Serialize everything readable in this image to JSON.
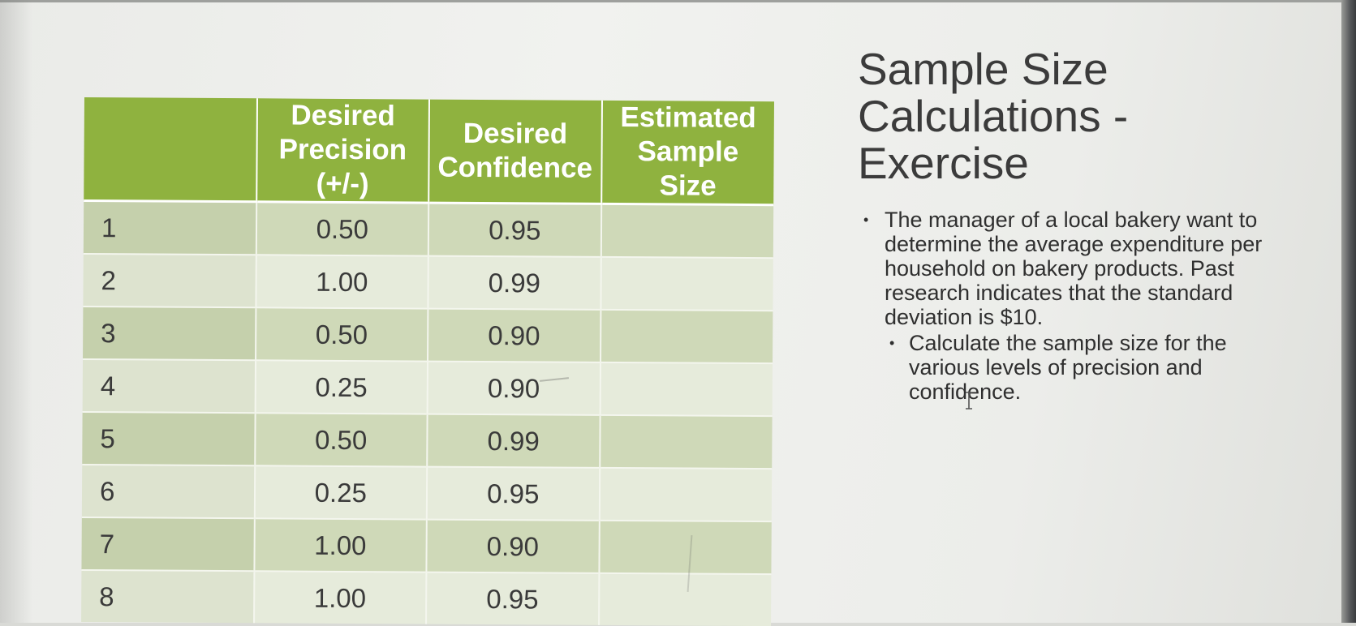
{
  "slide": {
    "title": "Sample Size Calculations - Exercise",
    "bullets": [
      {
        "level": 1,
        "text": "The manager of a local bakery want to determine the average expenditure per household on bakery products. Past research indicates that the standard deviation is $10."
      },
      {
        "level": 2,
        "text": "Calculate the sample size for the various levels of precision and confidence."
      }
    ]
  },
  "table": {
    "headers": [
      "",
      "Desired Precision (+/-)",
      "Desired Confidence",
      "Estimated Sample Size"
    ],
    "rows": [
      {
        "n": "1",
        "precision": "0.50",
        "confidence": "0.95",
        "sample_size": ""
      },
      {
        "n": "2",
        "precision": "1.00",
        "confidence": "0.99",
        "sample_size": ""
      },
      {
        "n": "3",
        "precision": "0.50",
        "confidence": "0.90",
        "sample_size": ""
      },
      {
        "n": "4",
        "precision": "0.25",
        "confidence": "0.90",
        "sample_size": ""
      },
      {
        "n": "5",
        "precision": "0.50",
        "confidence": "0.99",
        "sample_size": ""
      },
      {
        "n": "6",
        "precision": "0.25",
        "confidence": "0.95",
        "sample_size": ""
      },
      {
        "n": "7",
        "precision": "1.00",
        "confidence": "0.90",
        "sample_size": ""
      },
      {
        "n": "8",
        "precision": "1.00",
        "confidence": "0.95",
        "sample_size": ""
      }
    ]
  },
  "colors": {
    "header_green": "#8fb23f",
    "row_dark": "#cfd9b8",
    "row_light": "#e6ebdb"
  },
  "icons": {
    "cursor": "text-cursor-icon"
  }
}
